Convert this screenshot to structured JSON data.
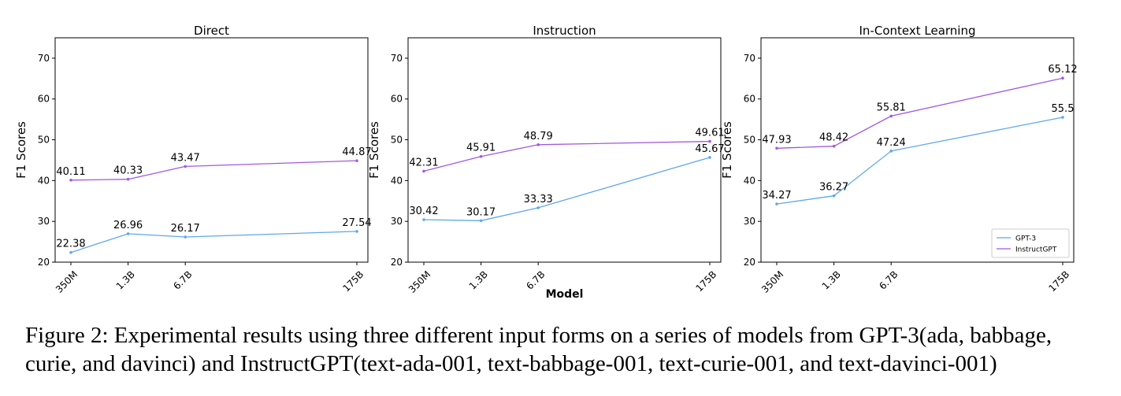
{
  "chart_data": [
    {
      "type": "line",
      "title": "Direct",
      "xlabel": "",
      "ylabel": "F1 Scores",
      "categories": [
        "350M",
        "1.3B",
        "6.7B",
        "175B"
      ],
      "x_positions": [
        0,
        1,
        2,
        5
      ],
      "ylim": [
        20,
        75
      ],
      "yticks": [
        20,
        30,
        40,
        50,
        60,
        70
      ],
      "grid": false,
      "series": [
        {
          "name": "GPT-3",
          "color": "#5fa8e8",
          "values": [
            22.38,
            26.96,
            26.17,
            27.54
          ],
          "labels": [
            "22.38",
            "26.96",
            "26.17",
            "27.54"
          ]
        },
        {
          "name": "InstructGPT",
          "color": "#a259e0",
          "values": [
            40.11,
            40.33,
            43.47,
            44.87
          ],
          "labels": [
            "40.11",
            "40.33",
            "43.47",
            "44.87"
          ]
        }
      ]
    },
    {
      "type": "line",
      "title": "Instruction",
      "xlabel": "Model",
      "ylabel": "F1 Scores",
      "categories": [
        "350M",
        "1.3B",
        "6.7B",
        "175B"
      ],
      "x_positions": [
        0,
        1,
        2,
        5
      ],
      "ylim": [
        20,
        75
      ],
      "yticks": [
        20,
        30,
        40,
        50,
        60,
        70
      ],
      "grid": false,
      "series": [
        {
          "name": "GPT-3",
          "color": "#5fa8e8",
          "values": [
            30.42,
            30.17,
            33.33,
            45.67
          ],
          "labels": [
            "30.42",
            "30.17",
            "33.33",
            "45.67"
          ]
        },
        {
          "name": "InstructGPT",
          "color": "#a259e0",
          "values": [
            42.31,
            45.91,
            48.79,
            49.61
          ],
          "labels": [
            "42.31",
            "45.91",
            "48.79",
            "49.61"
          ]
        }
      ]
    },
    {
      "type": "line",
      "title": "In-Context Learning",
      "xlabel": "",
      "ylabel": "F1 Scores",
      "categories": [
        "350M",
        "1.3B",
        "6.7B",
        "175B"
      ],
      "x_positions": [
        0,
        1,
        2,
        5
      ],
      "ylim": [
        20,
        75
      ],
      "yticks": [
        20,
        30,
        40,
        50,
        60,
        70
      ],
      "grid": false,
      "legend": "bottom-right",
      "series": [
        {
          "name": "GPT-3",
          "color": "#5fa8e8",
          "values": [
            34.27,
            36.27,
            47.24,
            55.5
          ],
          "labels": [
            "34.27",
            "36.27",
            "47.24",
            "55.5"
          ]
        },
        {
          "name": "InstructGPT",
          "color": "#a259e0",
          "values": [
            47.93,
            48.42,
            55.81,
            65.12
          ],
          "labels": [
            "47.93",
            "48.42",
            "55.81",
            "65.12"
          ]
        }
      ]
    }
  ],
  "caption": "Figure 2: Experimental results using three different input forms on a series of models from GPT-3(ada, babbage, curie, and davinci) and InstructGPT(text-ada-001, text-babbage-001, text-curie-001, and text-davinci-001)"
}
